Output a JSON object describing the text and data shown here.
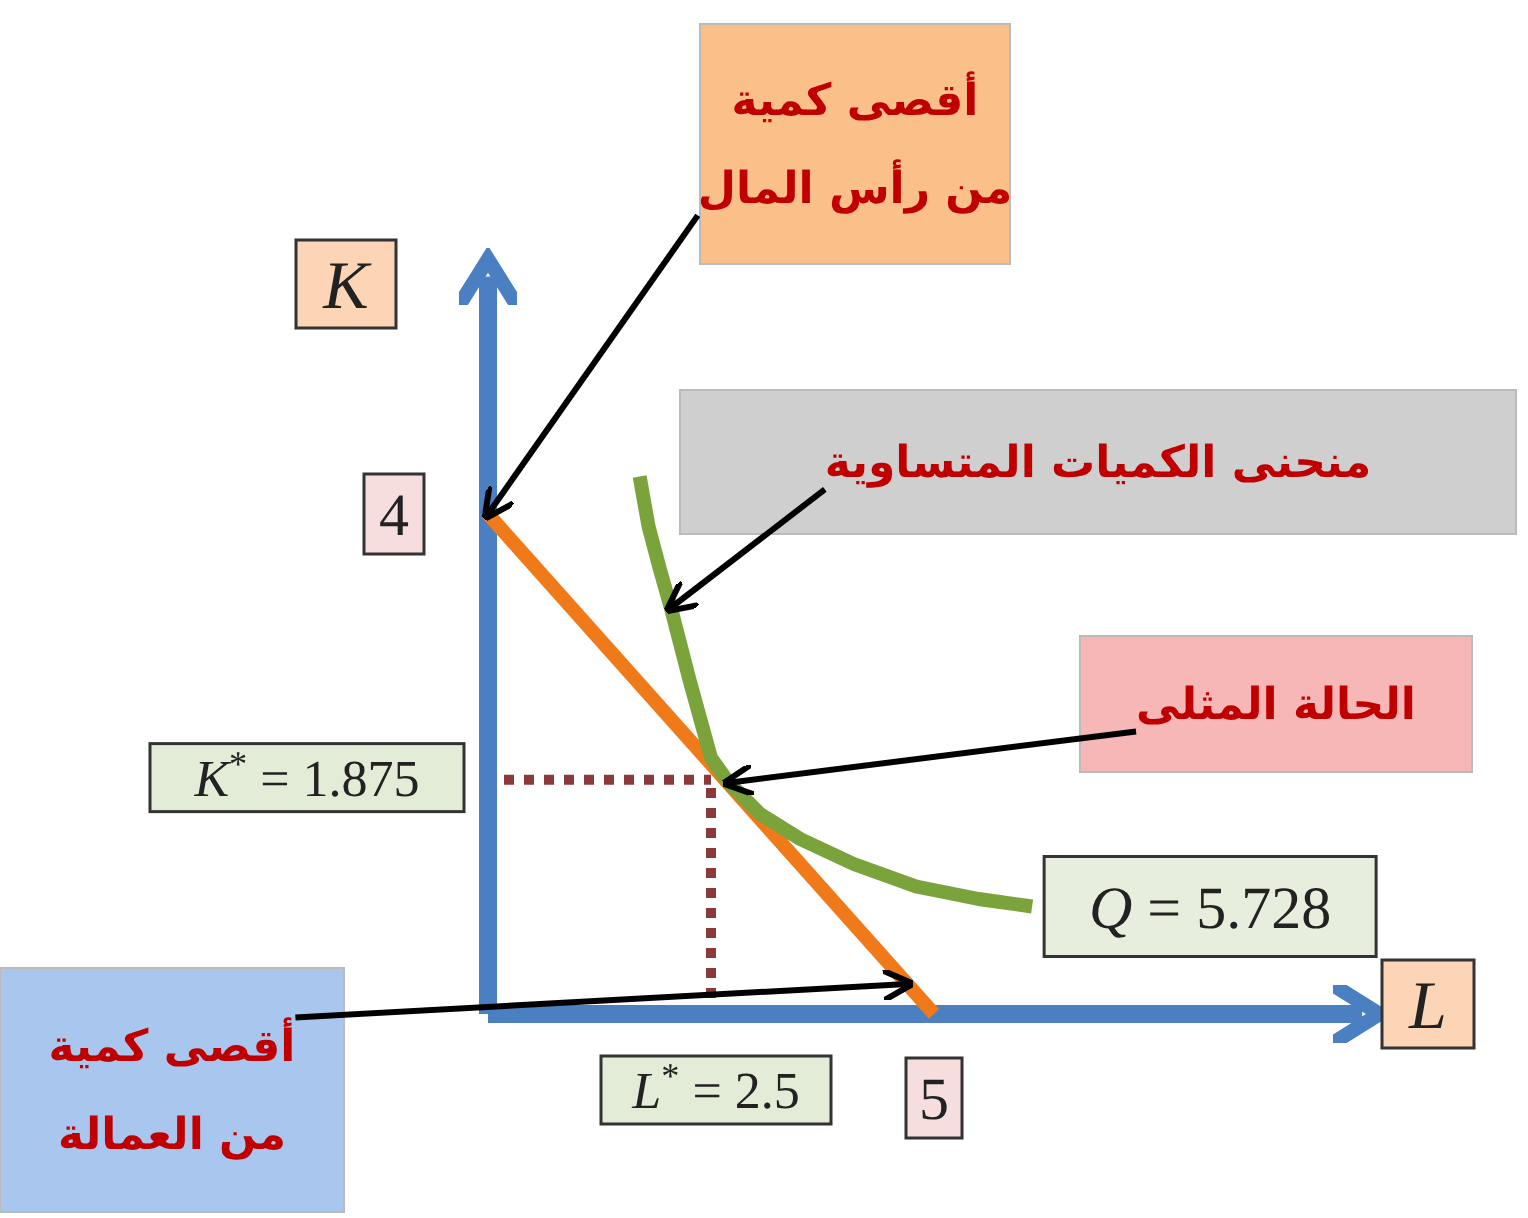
{
  "chart_data": {
    "type": "line",
    "xlabel": "L",
    "ylabel": "K",
    "xlim": [
      0,
      9.8
    ],
    "ylim": [
      0,
      5.9
    ],
    "xticks": [
      {
        "value": 2.5,
        "label": "L$^{*}$ = 2.5"
      },
      5
    ],
    "yticks": [
      {
        "value": 1.875,
        "label": "K$^{*}$ = 1.875"
      },
      4
    ],
    "series": [
      {
        "color": "#f07a1a",
        "x": [
          0,
          5
        ],
        "values": [
          4,
          0
        ]
      },
      {
        "name": "Q = 5.728",
        "color": "#7aa33c",
        "x": [
          1.7,
          1.8,
          1.93,
          2.05,
          2.26,
          2.5,
          2.7,
          3.05,
          3.5,
          4.1,
          4.8,
          5.5,
          6.1
        ],
        "values": [
          4.3,
          3.9,
          3.55,
          3.25,
          2.67,
          2.05,
          1.85,
          1.6,
          1.4,
          1.2,
          1.02,
          0.92,
          0.86
        ]
      }
    ],
    "ref_lines": [
      {
        "axis": "x",
        "value": 2.5,
        "color": "#8b3a3a",
        "line_style": "dotted"
      },
      {
        "axis": "y",
        "value": 1.875,
        "color": "#8b3a3a",
        "line_style": "dotted"
      }
    ],
    "annotations": [
      {
        "text": "أقصى كمية\nمن رأس المال",
        "x": 0,
        "y": 4
      },
      {
        "text": "منحنى الكميات المتساوية",
        "x": 2.05,
        "y": 3.25
      },
      {
        "text": "الحالة المثلى",
        "x": 2.7,
        "y": 1.85
      },
      {
        "text": "أقصى كمية\nمن العمالة",
        "x": 4.7,
        "y": 0.24
      }
    ]
  }
}
